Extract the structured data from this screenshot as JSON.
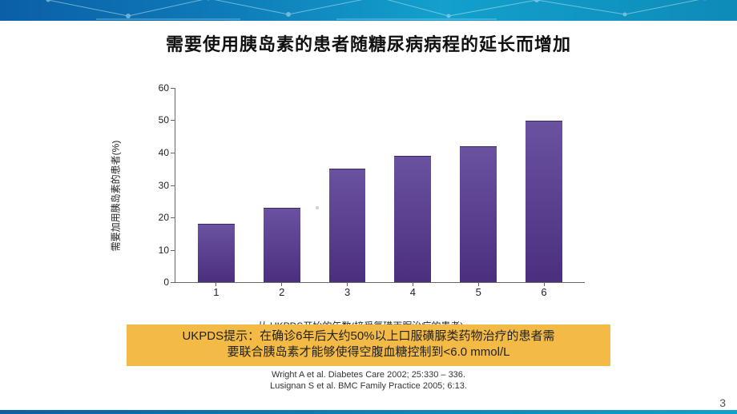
{
  "banner": {
    "gradient_from": "#0b5fa5",
    "gradient_to": "#13a0cc"
  },
  "title": "需要使用胰岛素的患者随糖尿病病程的延长而增加",
  "chart": {
    "type": "bar",
    "y_label": "需要加用胰岛素的患者(%)",
    "x_label": "从 UKPDS开始的年数(接受氯磺丙脲治疗的患者)",
    "categories": [
      "1",
      "2",
      "3",
      "4",
      "5",
      "6"
    ],
    "values": [
      18,
      23,
      35,
      39,
      42,
      50
    ],
    "ylim": [
      0,
      60
    ],
    "ytick_step": 10,
    "bar_fill_top": "#6a52a1",
    "bar_fill_bottom": "#4b2f7e",
    "axis_color": "#666666",
    "label_fontsize": 12,
    "tick_fontsize": 12,
    "bar_width_ratio": 0.56,
    "background_color": "#ffffff"
  },
  "callout": {
    "line1": "UKPDS提示：在确诊6年后大约50%以上口服磺脲类药物治疗的患者需",
    "line2": "要联合胰岛素才能够使得空腹血糖控制到<6.0 mmol/L",
    "bg": "#f3bb45",
    "text_color": "#222222"
  },
  "references": {
    "line1": "Wright A et al. Diabetes Care 2002; 25:330 – 336.",
    "line2": "Lusignan S et al. BMC Family Practice 2005; 6:13."
  },
  "page_number": "3"
}
